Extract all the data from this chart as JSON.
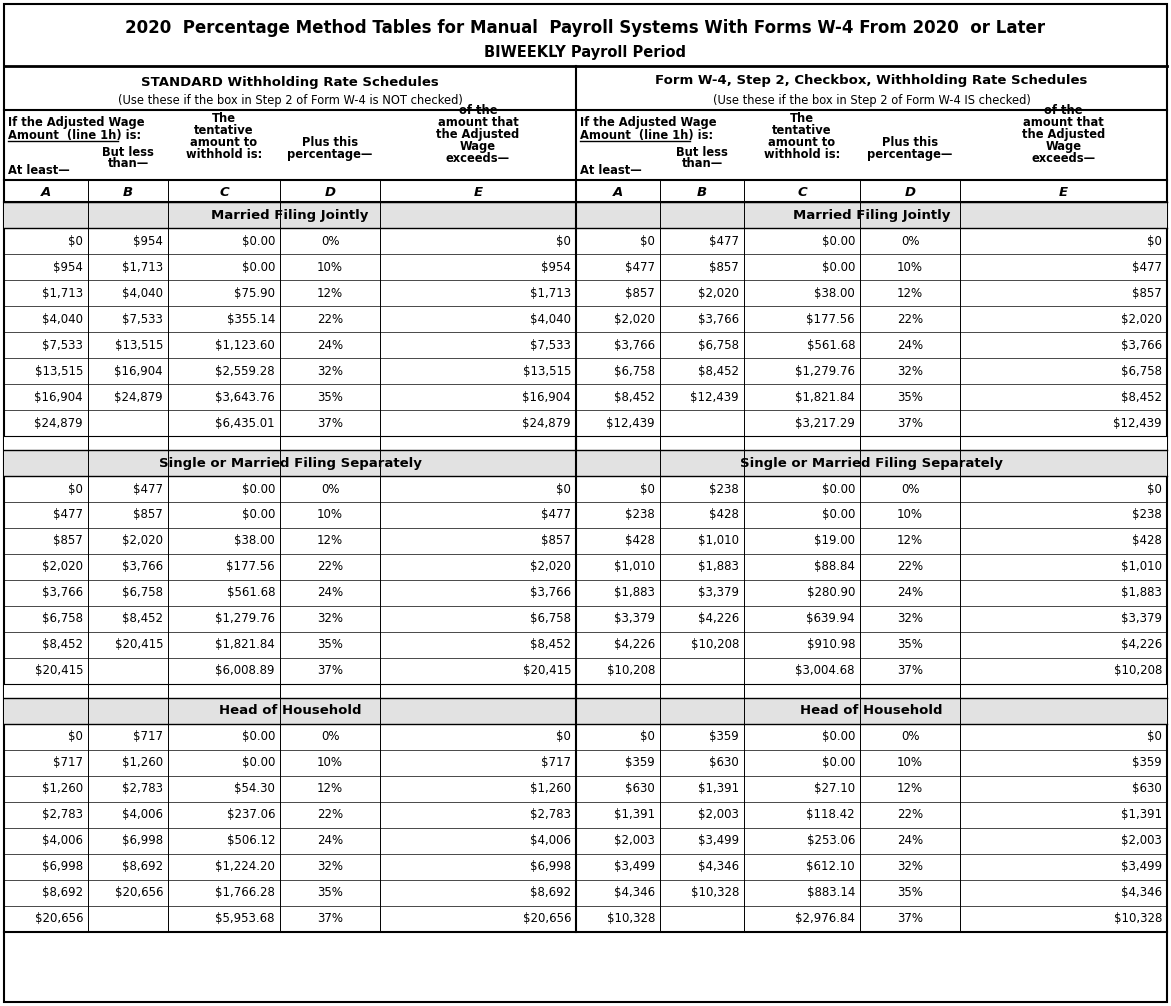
{
  "title1": "2020  Percentage Method Tables for Manual  Payroll Systems With Forms W-4 From 2020  or Later",
  "title2": "BIWEEKLY Payroll Period",
  "left_header1": "STANDARD Withholding Rate Schedules",
  "left_header2a": "(Use these if the box in Step 2 of Form W-4 is ",
  "left_header2b": "NOT",
  "left_header2c": " checked)",
  "right_header1": "Form W-4, Step 2, Checkbox, Withholding Rate Schedules",
  "right_header2a": "(Use these if the box in Step 2 of Form W-4 ",
  "right_header2b": "IS",
  "right_header2c": " checked)",
  "sections": [
    {
      "name": "Married Filing Jointly",
      "left_data": [
        [
          "$0",
          "$954",
          "$0.00",
          "0%",
          "$0"
        ],
        [
          "$954",
          "$1,713",
          "$0.00",
          "10%",
          "$954"
        ],
        [
          "$1,713",
          "$4,040",
          "$75.90",
          "12%",
          "$1,713"
        ],
        [
          "$4,040",
          "$7,533",
          "$355.14",
          "22%",
          "$4,040"
        ],
        [
          "$7,533",
          "$13,515",
          "$1,123.60",
          "24%",
          "$7,533"
        ],
        [
          "$13,515",
          "$16,904",
          "$2,559.28",
          "32%",
          "$13,515"
        ],
        [
          "$16,904",
          "$24,879",
          "$3,643.76",
          "35%",
          "$16,904"
        ],
        [
          "$24,879",
          "",
          "$6,435.01",
          "37%",
          "$24,879"
        ]
      ],
      "right_data": [
        [
          "$0",
          "$477",
          "$0.00",
          "0%",
          "$0"
        ],
        [
          "$477",
          "$857",
          "$0.00",
          "10%",
          "$477"
        ],
        [
          "$857",
          "$2,020",
          "$38.00",
          "12%",
          "$857"
        ],
        [
          "$2,020",
          "$3,766",
          "$177.56",
          "22%",
          "$2,020"
        ],
        [
          "$3,766",
          "$6,758",
          "$561.68",
          "24%",
          "$3,766"
        ],
        [
          "$6,758",
          "$8,452",
          "$1,279.76",
          "32%",
          "$6,758"
        ],
        [
          "$8,452",
          "$12,439",
          "$1,821.84",
          "35%",
          "$8,452"
        ],
        [
          "$12,439",
          "",
          "$3,217.29",
          "37%",
          "$12,439"
        ]
      ]
    },
    {
      "name": "Single or Married Filing Separately",
      "left_data": [
        [
          "$0",
          "$477",
          "$0.00",
          "0%",
          "$0"
        ],
        [
          "$477",
          "$857",
          "$0.00",
          "10%",
          "$477"
        ],
        [
          "$857",
          "$2,020",
          "$38.00",
          "12%",
          "$857"
        ],
        [
          "$2,020",
          "$3,766",
          "$177.56",
          "22%",
          "$2,020"
        ],
        [
          "$3,766",
          "$6,758",
          "$561.68",
          "24%",
          "$3,766"
        ],
        [
          "$6,758",
          "$8,452",
          "$1,279.76",
          "32%",
          "$6,758"
        ],
        [
          "$8,452",
          "$20,415",
          "$1,821.84",
          "35%",
          "$8,452"
        ],
        [
          "$20,415",
          "",
          "$6,008.89",
          "37%",
          "$20,415"
        ]
      ],
      "right_data": [
        [
          "$0",
          "$238",
          "$0.00",
          "0%",
          "$0"
        ],
        [
          "$238",
          "$428",
          "$0.00",
          "10%",
          "$238"
        ],
        [
          "$428",
          "$1,010",
          "$19.00",
          "12%",
          "$428"
        ],
        [
          "$1,010",
          "$1,883",
          "$88.84",
          "22%",
          "$1,010"
        ],
        [
          "$1,883",
          "$3,379",
          "$280.90",
          "24%",
          "$1,883"
        ],
        [
          "$3,379",
          "$4,226",
          "$639.94",
          "32%",
          "$3,379"
        ],
        [
          "$4,226",
          "$10,208",
          "$910.98",
          "35%",
          "$4,226"
        ],
        [
          "$10,208",
          "",
          "$3,004.68",
          "37%",
          "$10,208"
        ]
      ]
    },
    {
      "name": "Head of Household",
      "left_data": [
        [
          "$0",
          "$717",
          "$0.00",
          "0%",
          "$0"
        ],
        [
          "$717",
          "$1,260",
          "$0.00",
          "10%",
          "$717"
        ],
        [
          "$1,260",
          "$2,783",
          "$54.30",
          "12%",
          "$1,260"
        ],
        [
          "$2,783",
          "$4,006",
          "$237.06",
          "22%",
          "$2,783"
        ],
        [
          "$4,006",
          "$6,998",
          "$506.12",
          "24%",
          "$4,006"
        ],
        [
          "$6,998",
          "$8,692",
          "$1,224.20",
          "32%",
          "$6,998"
        ],
        [
          "$8,692",
          "$20,656",
          "$1,766.28",
          "35%",
          "$8,692"
        ],
        [
          "$20,656",
          "",
          "$5,953.68",
          "37%",
          "$20,656"
        ]
      ],
      "right_data": [
        [
          "$0",
          "$359",
          "$0.00",
          "0%",
          "$0"
        ],
        [
          "$359",
          "$630",
          "$0.00",
          "10%",
          "$359"
        ],
        [
          "$630",
          "$1,391",
          "$27.10",
          "12%",
          "$630"
        ],
        [
          "$1,391",
          "$2,003",
          "$118.42",
          "22%",
          "$1,391"
        ],
        [
          "$2,003",
          "$3,499",
          "$253.06",
          "24%",
          "$2,003"
        ],
        [
          "$3,499",
          "$4,346",
          "$612.10",
          "32%",
          "$3,499"
        ],
        [
          "$4,346",
          "$10,328",
          "$883.14",
          "35%",
          "$4,346"
        ],
        [
          "$10,328",
          "",
          "$2,976.84",
          "37%",
          "$10,328"
        ]
      ]
    }
  ]
}
